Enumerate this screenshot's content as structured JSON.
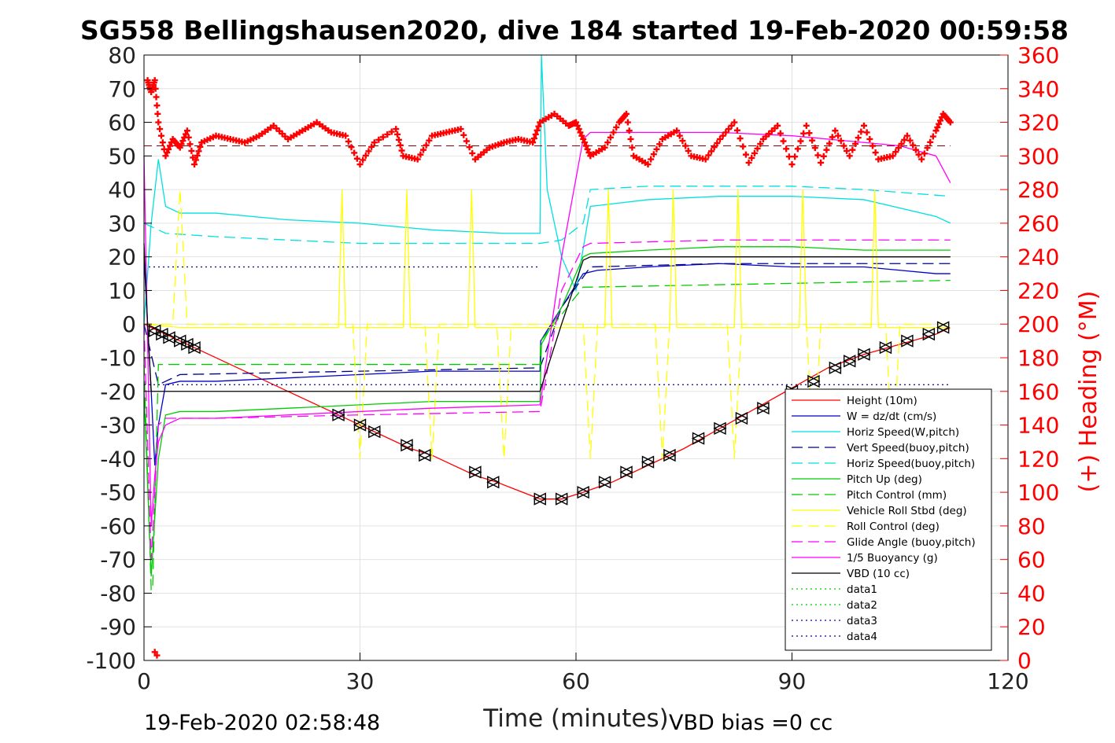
{
  "chart_data": {
    "type": "line",
    "title": "SG558 Bellingshausen2020, dive 184 started 19-Feb-2020 00:59:58",
    "xlabel": "Time (minutes)",
    "ylabel": "",
    "y2label": "(+) Heading (°M)",
    "xlim": [
      0,
      120
    ],
    "ylim": [
      -100,
      80
    ],
    "y2lim": [
      0,
      360
    ],
    "xticks": [
      0,
      30,
      60,
      90,
      120
    ],
    "yticks": [
      -100,
      -90,
      -80,
      -70,
      -60,
      -50,
      -40,
      -30,
      -20,
      -10,
      0,
      10,
      20,
      30,
      40,
      50,
      60,
      70,
      80
    ],
    "y2ticks": [
      0,
      20,
      40,
      60,
      80,
      100,
      120,
      140,
      160,
      180,
      200,
      220,
      240,
      260,
      280,
      300,
      320,
      340,
      360
    ],
    "grid": true,
    "legend_position": "bottom-right",
    "footer_left": "19-Feb-2020 02:58:48",
    "footer_right": "VBD bias =0 cc",
    "heading_color": "#ff0000",
    "series": [
      {
        "name": "Height (10m)",
        "color": "#ff0000",
        "style": "solid",
        "x": [
          0,
          1,
          2,
          8,
          20,
          27,
          30,
          32,
          37,
          40,
          46,
          49,
          55,
          58,
          61,
          65,
          70,
          75,
          80,
          85,
          90,
          95,
          100,
          105,
          110,
          112
        ],
        "y": [
          0,
          -1,
          -2,
          -8,
          -20,
          -27,
          -30,
          -32,
          -37,
          -39,
          -45,
          -47,
          -52,
          -52,
          -50,
          -47,
          -42,
          -37,
          -31,
          -25,
          -19,
          -13,
          -9,
          -6,
          -3,
          -1
        ]
      },
      {
        "name": "W = dz/dt (cm/s)",
        "color": "#0000cc",
        "style": "solid",
        "x": [
          0,
          1,
          1.5,
          2,
          3,
          5,
          10,
          20,
          30,
          40,
          50,
          55,
          55.1,
          58,
          61,
          63,
          70,
          80,
          90,
          100,
          105,
          110,
          112
        ],
        "y": [
          20,
          -20,
          -42,
          -30,
          -18,
          -17,
          -17,
          -16,
          -15,
          -14,
          -14,
          -14,
          -5,
          5,
          15,
          16,
          17,
          18,
          17,
          17,
          16,
          15,
          15
        ]
      },
      {
        "name": "Horiz Speed(W,pitch)",
        "color": "#00e0e0",
        "style": "solid",
        "x": [
          0,
          1,
          2,
          3,
          5,
          10,
          20,
          30,
          40,
          50,
          55,
          55.2,
          56,
          58,
          60,
          62,
          70,
          80,
          90,
          100,
          110,
          112
        ],
        "y": [
          0,
          30,
          49,
          35,
          33,
          33,
          31,
          30,
          28,
          27,
          27,
          80,
          40,
          20,
          10,
          35,
          37,
          38,
          38,
          37,
          32,
          30
        ]
      },
      {
        "name": "Vert Speed(buoy,pitch)",
        "color": "#000088",
        "style": "dashed",
        "x": [
          0,
          2,
          5,
          30,
          55,
          58,
          61,
          62,
          80,
          100,
          112
        ],
        "y": [
          0,
          -18,
          -15,
          -14,
          -13,
          5,
          14,
          17,
          18,
          18,
          18
        ]
      },
      {
        "name": "Horiz Speed(buoy,pitch)",
        "color": "#00e0e0",
        "style": "dashed",
        "x": [
          0,
          2,
          3,
          10,
          20,
          30,
          40,
          55,
          58,
          61,
          62,
          70,
          80,
          90,
          100,
          112
        ],
        "y": [
          30,
          28,
          27,
          26,
          25,
          24,
          24,
          24,
          25,
          30,
          40,
          41,
          41,
          41,
          40,
          38
        ]
      },
      {
        "name": "Pitch Up (deg)",
        "color": "#00cc00",
        "style": "solid",
        "x": [
          0,
          1,
          2,
          3,
          5,
          10,
          20,
          30,
          40,
          55,
          55.2,
          58,
          61,
          62,
          70,
          80,
          90,
          100,
          110,
          112
        ],
        "y": [
          -20,
          -75,
          -40,
          -27,
          -26,
          -26,
          -25,
          -24,
          -23,
          -23,
          -6,
          5,
          20,
          21,
          22,
          23,
          23,
          22,
          22,
          22
        ]
      },
      {
        "name": "Pitch Control (mm)",
        "color": "#00cc00",
        "style": "dashed",
        "x": [
          0,
          1,
          1.2,
          2,
          55,
          55.1,
          61,
          62,
          112
        ],
        "y": [
          -12,
          -79,
          -79,
          -12,
          -12,
          -5,
          11,
          11,
          13
        ]
      },
      {
        "name": "Vehicle Roll Stbd (deg)",
        "color": "#ffff00",
        "style": "solid",
        "x": [
          0,
          5,
          10,
          20,
          27,
          27.5,
          28,
          30,
          36,
          36.5,
          37,
          45,
          45.5,
          46,
          55,
          60,
          64,
          64.5,
          65,
          73,
          73.5,
          74,
          82,
          82.5,
          83,
          91,
          91.5,
          92,
          101,
          101.5,
          102,
          112
        ],
        "y": [
          0,
          -1,
          -1,
          -1,
          -1,
          40,
          -1,
          -1,
          -1,
          40,
          -1,
          -1,
          40,
          -1,
          -1,
          -1,
          -1,
          40,
          -1,
          -1,
          40,
          -1,
          -1,
          40,
          -1,
          -1,
          40,
          -1,
          -1,
          40,
          -1,
          -1
        ]
      },
      {
        "name": "Roll Control (deg)",
        "color": "#ffff00",
        "style": "dashed",
        "x": [
          0,
          4,
          5,
          6,
          29,
          30,
          31,
          39,
          40,
          41,
          49,
          50,
          51,
          61,
          62,
          63,
          71,
          72,
          73,
          81,
          82,
          83,
          92,
          93,
          94,
          103,
          104,
          105,
          112
        ],
        "y": [
          0,
          0,
          40,
          0,
          0,
          -40,
          0,
          0,
          -40,
          0,
          0,
          -40,
          0,
          0,
          -40,
          0,
          0,
          -40,
          0,
          0,
          -40,
          0,
          0,
          -40,
          0,
          0,
          -40,
          0,
          0
        ]
      },
      {
        "name": "Glide Angle (buoy,pitch)",
        "color": "#ff00ff",
        "style": "dashed",
        "x": [
          0,
          1,
          2,
          3,
          10,
          30,
          55,
          58,
          61,
          62,
          80,
          100,
          112
        ],
        "y": [
          0,
          -70,
          -30,
          -28,
          -28,
          -27,
          -26,
          10,
          23,
          24,
          25,
          25,
          25
        ]
      },
      {
        "name": "1/5 Buoyancy (g)",
        "color": "#ff00ff",
        "style": "solid",
        "x": [
          0,
          1,
          1.5,
          2,
          3,
          5,
          10,
          20,
          30,
          40,
          55,
          58,
          61,
          62,
          70,
          80,
          90,
          100,
          105,
          110,
          112
        ],
        "y": [
          50,
          -60,
          -45,
          -35,
          -30,
          -28,
          -28,
          -27,
          -26,
          -25,
          -24,
          20,
          55,
          57,
          57,
          57,
          56,
          54,
          53,
          50,
          42
        ]
      },
      {
        "name": "VBD (10 cc)",
        "color": "#000000",
        "style": "solid",
        "x": [
          0,
          0.5,
          1,
          5,
          55,
          58,
          61,
          62,
          112
        ],
        "y": [
          24,
          0,
          -20,
          -20,
          -20,
          0,
          19,
          20,
          20
        ]
      },
      {
        "name": "data1",
        "color": "#00cc00",
        "style": "dotted",
        "x": [],
        "y": []
      },
      {
        "name": "data2",
        "color": "#00cc00",
        "style": "dotted",
        "x": [],
        "y": []
      },
      {
        "name": "data3",
        "color": "#000088",
        "style": "dotted",
        "x": [
          0,
          112
        ],
        "y": [
          -18,
          -18
        ]
      },
      {
        "name": "data4",
        "color": "#000088",
        "style": "dotted",
        "x": [
          0,
          55
        ],
        "y": [
          17,
          17
        ]
      }
    ],
    "heading_reference": {
      "y2": 306,
      "color": "#8b0000",
      "style": "dashed",
      "x": [
        0,
        112
      ]
    },
    "heading": {
      "x": [
        0.5,
        1,
        1.5,
        2,
        3,
        4,
        5,
        6,
        7,
        8,
        10,
        12,
        14,
        16,
        18,
        20,
        22,
        24,
        26,
        28,
        30,
        32,
        35,
        36,
        38,
        40,
        42,
        44,
        46,
        48,
        50,
        52,
        54,
        55,
        57,
        59,
        60,
        61,
        62,
        64,
        66,
        67,
        68,
        70,
        72,
        74,
        76,
        78,
        80,
        82,
        84,
        86,
        88,
        90,
        92,
        94,
        96,
        98,
        100,
        102,
        104,
        106,
        108,
        110,
        111,
        112
      ],
      "y": [
        345,
        338,
        345,
        320,
        300,
        310,
        305,
        315,
        295,
        308,
        312,
        310,
        308,
        312,
        318,
        310,
        315,
        320,
        314,
        312,
        295,
        308,
        316,
        300,
        298,
        312,
        314,
        316,
        298,
        305,
        308,
        310,
        308,
        320,
        325,
        318,
        320,
        310,
        300,
        305,
        320,
        325,
        300,
        295,
        310,
        315,
        300,
        298,
        310,
        320,
        296,
        310,
        318,
        295,
        318,
        296,
        315,
        300,
        318,
        298,
        300,
        312,
        298,
        315,
        325,
        320
      ]
    },
    "heading_outliers": {
      "x": [
        1.5,
        1.8
      ],
      "y2": [
        5,
        3
      ]
    },
    "markers": {
      "x": [
        1.5,
        2.5,
        3.5,
        5,
        6,
        7,
        27,
        30,
        32,
        36.5,
        39,
        46,
        48.5,
        55,
        58,
        61,
        64,
        67,
        70,
        73,
        77,
        80,
        83,
        86,
        90,
        93,
        96,
        98,
        100,
        103,
        106,
        109,
        111
      ],
      "y": [
        -2,
        -3,
        -4,
        -5,
        -6,
        -7,
        -27,
        -30,
        -32,
        -36,
        -39,
        -44,
        -47,
        -52,
        -52,
        -50,
        -47,
        -44,
        -41,
        -39,
        -34,
        -31,
        -28,
        -25,
        -20,
        -17,
        -13,
        -11,
        -9,
        -7,
        -5,
        -3,
        -1
      ]
    }
  }
}
